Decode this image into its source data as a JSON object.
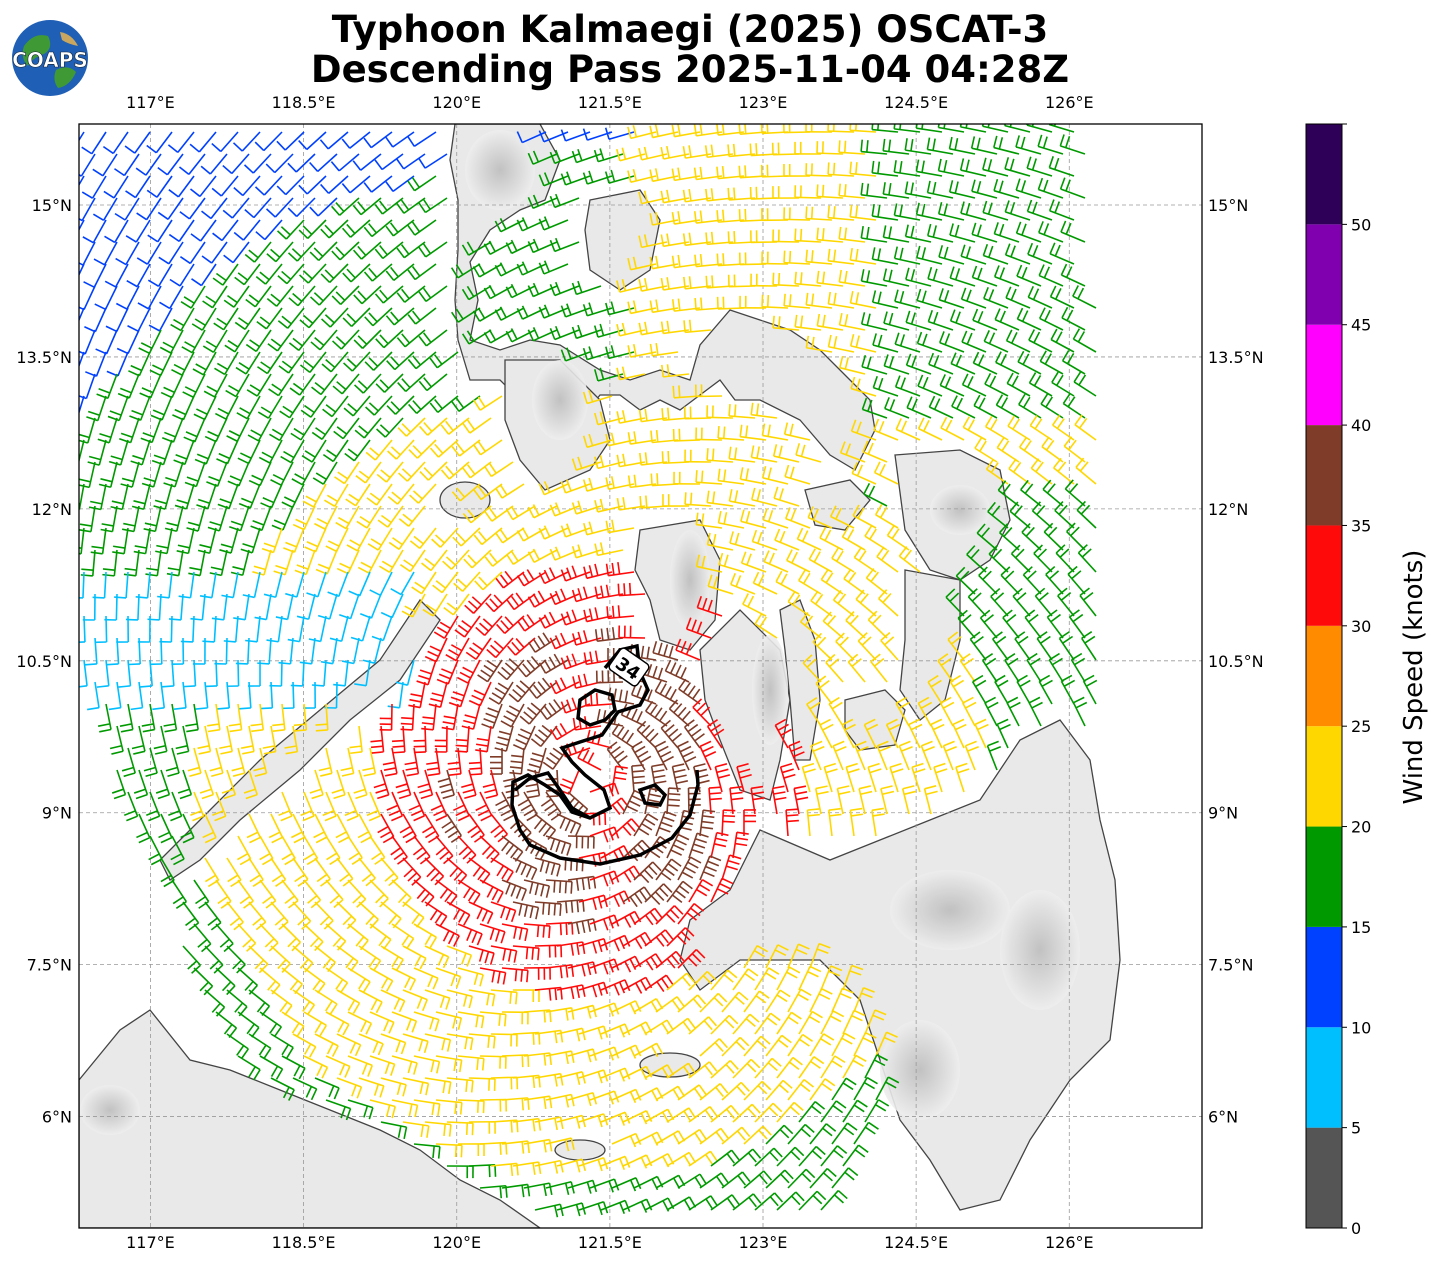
{
  "title": {
    "line1": "Typhoon Kalmaegi (2025) OSCAT-3",
    "line2": "Descending Pass 2025-11-04 04:28Z"
  },
  "logo": {
    "text": "COAPS",
    "icon": "globe-logo-icon"
  },
  "map": {
    "lon_range": [
      116.3,
      127.3
    ],
    "lat_range": [
      4.9,
      15.8
    ],
    "lon_ticks": [
      "117°E",
      "118.5°E",
      "120°E",
      "121.5°E",
      "123°E",
      "124.5°E",
      "126°E"
    ],
    "lon_tick_values": [
      117,
      118.5,
      120,
      121.5,
      123,
      124.5,
      126
    ],
    "lat_ticks": [
      "15°N",
      "13.5°N",
      "12°N",
      "10.5°N",
      "9°N",
      "7.5°N",
      "6°N"
    ],
    "lat_tick_values": [
      15,
      13.5,
      12,
      10.5,
      9,
      7.5,
      6
    ],
    "gridlines": true,
    "contour_label": "34",
    "colors": {
      "land": "#e9e9e9",
      "coast": "#444444",
      "contour": "#000000"
    }
  },
  "colorbar": {
    "label": "Wind Speed (knots)",
    "tick_labels": [
      "0",
      "5",
      "10",
      "15",
      "20",
      "25",
      "30",
      "35",
      "40",
      "45",
      "50"
    ],
    "bounds": [
      0,
      5,
      10,
      15,
      20,
      25,
      30,
      35,
      40,
      45,
      50,
      55
    ],
    "colors": [
      "#555555",
      "#00bfff",
      "#0040ff",
      "#009a00",
      "#ffd700",
      "#ff8c00",
      "#ff0a0a",
      "#7f3c28",
      "#ff00ff",
      "#8000b0",
      "#2e0058"
    ]
  }
}
